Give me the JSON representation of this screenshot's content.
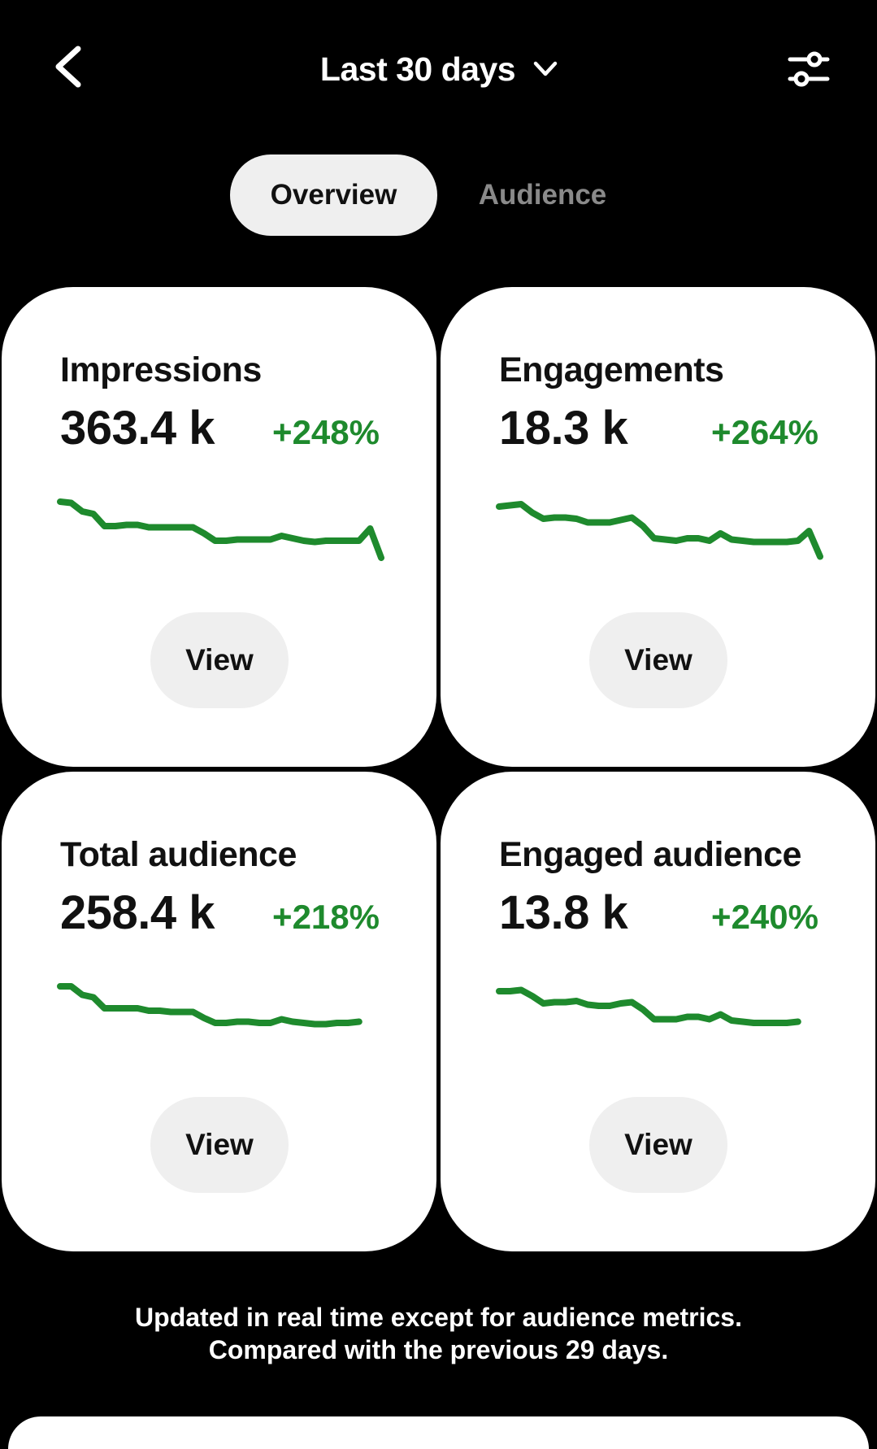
{
  "header": {
    "back_icon": "chevron-left-icon",
    "range_label": "Last 30 days",
    "range_icon": "chevron-down-icon",
    "filter_icon": "sliders-icon"
  },
  "tabs": [
    {
      "label": "Overview",
      "active": true
    },
    {
      "label": "Audience",
      "active": false
    }
  ],
  "colors": {
    "background": "#000000",
    "card": "#ffffff",
    "positive": "#1e8a2d",
    "pill": "#efefef",
    "inactive_tab": "#8a8a8a"
  },
  "cards": [
    {
      "title": "Impressions",
      "value": "363.4 k",
      "change": "+248%",
      "view_label": "View",
      "trend": [
        70,
        69,
        62,
        60,
        50,
        50,
        51,
        51,
        49,
        49,
        49,
        49,
        49,
        44,
        38,
        38,
        39,
        39,
        39,
        39,
        42,
        40,
        38,
        37,
        38,
        38,
        38,
        38,
        48,
        24
      ]
    },
    {
      "title": "Engagements",
      "value": "18.3 k",
      "change": "+264%",
      "view_label": "View",
      "trend": [
        66,
        67,
        68,
        61,
        56,
        57,
        57,
        56,
        53,
        53,
        53,
        55,
        57,
        50,
        40,
        39,
        38,
        40,
        40,
        38,
        44,
        39,
        38,
        37,
        37,
        37,
        37,
        38,
        46,
        25
      ]
    },
    {
      "title": "Total audience",
      "value": "258.4 k",
      "change": "+218%",
      "view_label": "View",
      "trend": [
        70,
        70,
        63,
        61,
        52,
        52,
        52,
        52,
        50,
        50,
        49,
        49,
        49,
        44,
        40,
        40,
        41,
        41,
        40,
        40,
        43,
        41,
        40,
        39,
        39,
        40,
        40,
        41
      ]
    },
    {
      "title": "Engaged audience",
      "value": "13.8 k",
      "change": "+240%",
      "view_label": "View",
      "trend": [
        66,
        66,
        67,
        62,
        56,
        57,
        57,
        58,
        55,
        54,
        54,
        56,
        57,
        51,
        43,
        43,
        43,
        45,
        45,
        43,
        47,
        42,
        41,
        40,
        40,
        40,
        40,
        41
      ]
    }
  ],
  "footer": {
    "line1": "Updated in real time except for audience metrics.",
    "line2": "Compared with the previous 29 days."
  }
}
